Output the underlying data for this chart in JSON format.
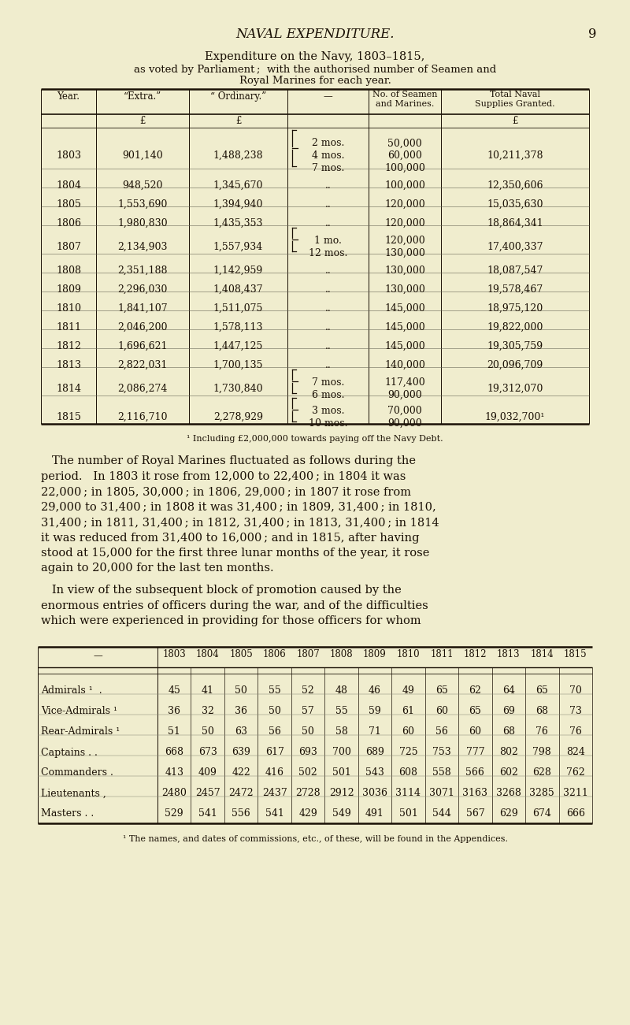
{
  "bg_color": "#f0edce",
  "page_title": "NAVAL EXPENDITURE.",
  "page_number": "9",
  "table1_title": "Expenditure on the Navy, 1803–1815,",
  "table1_subtitle_line1": "as voted by Parliament ;  with the authorised number of Seamen and",
  "table1_subtitle_line2": "Royal Marines for each year.",
  "table1_rows": [
    {
      "year": "1803",
      "extra": "901,140",
      "ordinary": "1,488,238",
      "detail_lines": [
        "2 mos.",
        "4 mos.",
        "7 mos."
      ],
      "seamen_lines": [
        "50,000",
        "60,000",
        "100,000"
      ],
      "brace": true,
      "total": "10,211,378"
    },
    {
      "year": "1804",
      "extra": "948,520",
      "ordinary": "1,345,670",
      "detail_lines": [
        ".."
      ],
      "seamen_lines": [
        "100,000"
      ],
      "brace": false,
      "total": "12,350,606"
    },
    {
      "year": "1805",
      "extra": "1,553,690",
      "ordinary": "1,394,940",
      "detail_lines": [
        ".."
      ],
      "seamen_lines": [
        "120,000"
      ],
      "brace": false,
      "total": "15,035,630"
    },
    {
      "year": "1806",
      "extra": "1,980,830",
      "ordinary": "1,435,353",
      "detail_lines": [
        ".."
      ],
      "seamen_lines": [
        "120,000"
      ],
      "brace": false,
      "total": "18,864,341"
    },
    {
      "year": "1807",
      "extra": "2,134,903",
      "ordinary": "1,557,934",
      "detail_lines": [
        "1 mo.",
        "12 mos."
      ],
      "seamen_lines": [
        "120,000",
        "130,000"
      ],
      "brace": true,
      "total": "17,400,337"
    },
    {
      "year": "1808",
      "extra": "2,351,188",
      "ordinary": "1,142,959",
      "detail_lines": [
        ".."
      ],
      "seamen_lines": [
        "130,000"
      ],
      "brace": false,
      "total": "18,087,547"
    },
    {
      "year": "1809",
      "extra": "2,296,030",
      "ordinary": "1,408,437",
      "detail_lines": [
        ".."
      ],
      "seamen_lines": [
        "130,000"
      ],
      "brace": false,
      "total": "19,578,467"
    },
    {
      "year": "1810",
      "extra": "1,841,107",
      "ordinary": "1,511,075",
      "detail_lines": [
        ".."
      ],
      "seamen_lines": [
        "145,000"
      ],
      "brace": false,
      "total": "18,975,120"
    },
    {
      "year": "1811",
      "extra": "2,046,200",
      "ordinary": "1,578,113",
      "detail_lines": [
        ".."
      ],
      "seamen_lines": [
        "145,000"
      ],
      "brace": false,
      "total": "19,822,000"
    },
    {
      "year": "1812",
      "extra": "1,696,621",
      "ordinary": "1,447,125",
      "detail_lines": [
        ".."
      ],
      "seamen_lines": [
        "145,000"
      ],
      "brace": false,
      "total": "19,305,759"
    },
    {
      "year": "1813",
      "extra": "2,822,031",
      "ordinary": "1,700,135",
      "detail_lines": [
        ".."
      ],
      "seamen_lines": [
        "140,000"
      ],
      "brace": false,
      "total": "20,096,709"
    },
    {
      "year": "1814",
      "extra": "2,086,274",
      "ordinary": "1,730,840",
      "detail_lines": [
        "7 mos.",
        "6 mos."
      ],
      "seamen_lines": [
        "117,400",
        "90,000"
      ],
      "brace": true,
      "total": "19,312,070"
    },
    {
      "year": "1815",
      "extra": "2,116,710",
      "ordinary": "2,278,929",
      "detail_lines": [
        "3 mos.",
        "10 mos."
      ],
      "seamen_lines": [
        "70,000",
        "90,000"
      ],
      "brace": true,
      "total": "19,032,700¹"
    }
  ],
  "footnote1": "¹ Including £2,000,000 towards paying off the Navy Debt.",
  "paragraph1": "The number of Royal Marines fluctuated as follows during the period.  In 1803 it rose from 12,000 to 22,400 ; in 1804 it was 22,000 ; in 1805, 30,000 ; in 1806, 29,000 ; in 1807 it rose from 29,000 to 31,400 ; in 1808 it was 31,400 ; in 1809, 31,400 ; in 1810, 31,400 ; in 1811, 31,400 ; in 1812, 31,400 ; in 1813, 31,400 ; in 1814 it was reduced from 31,400 to 16,000 ; and in 1815, after having stood at 15,000 for the first three lunar months of the year, it rose again to 20,000 for the last ten months.",
  "paragraph2": " In view of the subsequent block of promotion caused by the enormous entries of officers during the war, and of the difficulties which were experienced in providing for those officers for whom",
  "table2_years": [
    "1803",
    "1804",
    "1805",
    "1806",
    "1807",
    "1808",
    "1809",
    "1810",
    "1811",
    "1812",
    "1813",
    "1814",
    "1815"
  ],
  "table2_rows": [
    {
      "label": "Admirals ¹  .",
      "values": [
        45,
        41,
        50,
        55,
        52,
        48,
        46,
        49,
        65,
        62,
        64,
        65,
        70
      ]
    },
    {
      "label": "Vice-Admirals ¹",
      "values": [
        36,
        32,
        36,
        50,
        57,
        55,
        59,
        61,
        60,
        65,
        69,
        68,
        73
      ]
    },
    {
      "label": "Rear-Admirals ¹",
      "values": [
        51,
        50,
        63,
        56,
        50,
        58,
        71,
        60,
        56,
        60,
        68,
        76,
        76
      ]
    },
    {
      "label": "Captains . .",
      "values": [
        668,
        673,
        639,
        617,
        693,
        700,
        689,
        725,
        753,
        777,
        802,
        798,
        824
      ]
    },
    {
      "label": "Commanders .",
      "values": [
        413,
        409,
        422,
        416,
        502,
        501,
        543,
        608,
        558,
        566,
        602,
        628,
        762
      ]
    },
    {
      "label": "Lieutenants ,",
      "values": [
        2480,
        2457,
        2472,
        2437,
        2728,
        2912,
        3036,
        3114,
        3071,
        3163,
        3268,
        3285,
        3211
      ]
    },
    {
      "label": "Masters . .",
      "values": [
        529,
        541,
        556,
        541,
        429,
        549,
        491,
        501,
        544,
        567,
        629,
        674,
        666
      ]
    }
  ],
  "footnote2": "¹ The names, and dates of commissions, etc., of these, will be found in the Appendices."
}
